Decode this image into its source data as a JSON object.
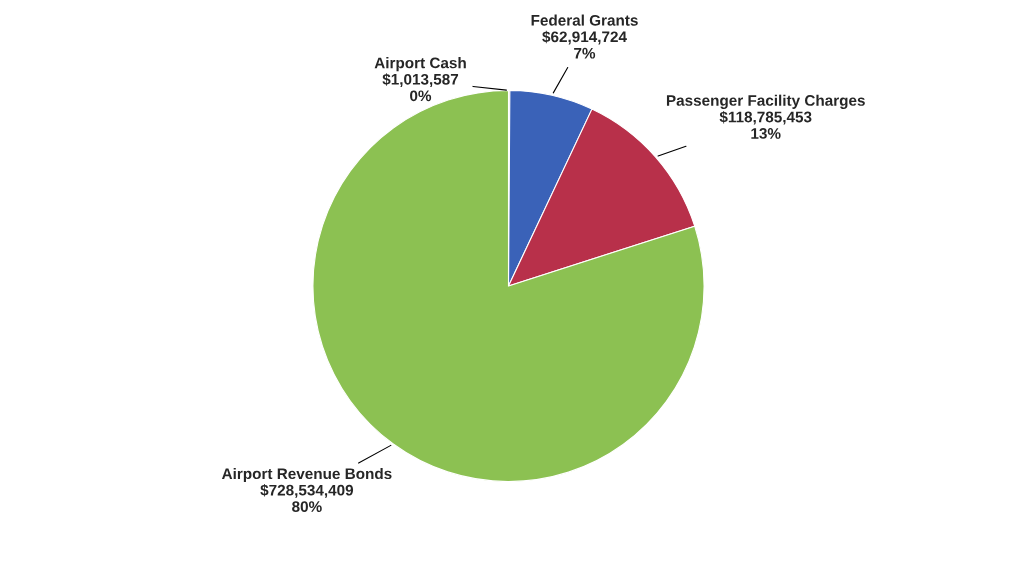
{
  "chart_data": {
    "type": "pie",
    "categories": [
      "Airport Cash",
      "Federal Grants",
      "Passenger Facility Charges",
      "Airport Revenue Bonds"
    ],
    "values": [
      1013587,
      62914724,
      118785453,
      728534409
    ],
    "colors": [
      "#e46c0a",
      "#3a62b8",
      "#b8304a",
      "#8cc152"
    ],
    "value_labels": [
      "$1,013,587\n0%",
      "$62,914,724\n7%",
      "$118,785,453\n13%",
      "$728,534,409\n80%"
    ],
    "legend": false
  }
}
